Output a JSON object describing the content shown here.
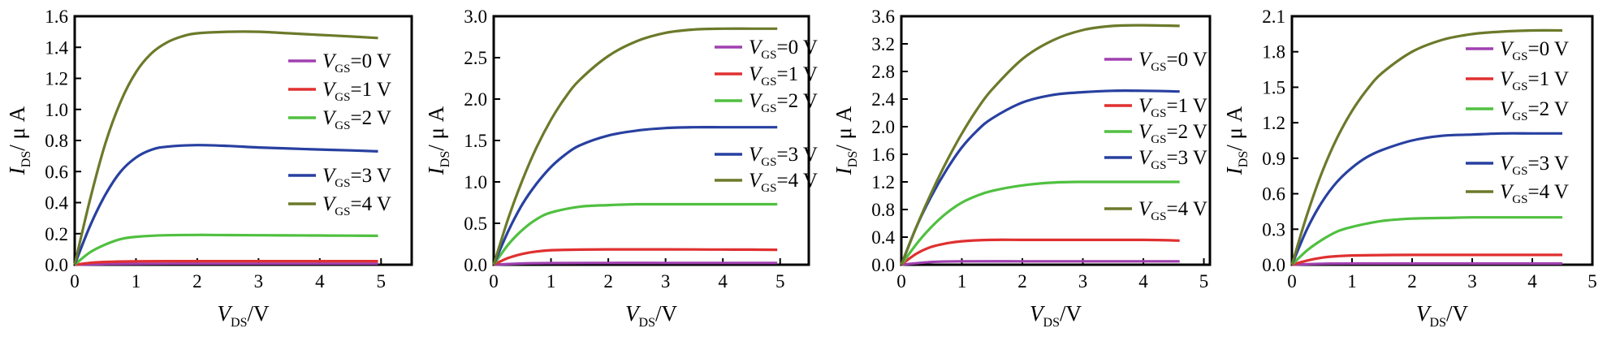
{
  "chart_data": [
    {
      "type": "line",
      "xlabel": {
        "main": "V",
        "sub": "DS",
        "tail": "/V"
      },
      "ylabel": {
        "main": "I",
        "sub": "DS",
        "tail": "/ μ A"
      },
      "xlim": [
        0,
        5.5
      ],
      "ylim": [
        0,
        1.6
      ],
      "x_ticks": [
        "0",
        "1",
        "2",
        "3",
        "4",
        "5"
      ],
      "y_ticks": [
        "0.0",
        "0.2",
        "0.4",
        "0.6",
        "0.8",
        "1.0",
        "1.2",
        "1.4",
        "1.6"
      ],
      "grid": false,
      "legend": "right",
      "series": [
        {
          "name": "VGS=0 V",
          "label": {
            "main": "V",
            "sub": "GS",
            "tail": "=0 V"
          },
          "color": "#a040b0",
          "x": [
            0,
            0.5,
            1,
            1.5,
            2,
            2.5,
            3,
            3.5,
            4,
            4.5,
            4.95
          ],
          "y": [
            0,
            0.004,
            0.006,
            0.007,
            0.007,
            0.007,
            0.007,
            0.007,
            0.007,
            0.007,
            0.007
          ]
        },
        {
          "name": "VGS=1 V",
          "label": {
            "main": "V",
            "sub": "GS",
            "tail": "=1 V"
          },
          "color": "#e03030",
          "x": [
            0,
            0.25,
            0.5,
            1,
            1.5,
            2,
            2.5,
            3,
            3.5,
            4,
            4.5,
            4.95
          ],
          "y": [
            0,
            0.012,
            0.018,
            0.022,
            0.023,
            0.023,
            0.023,
            0.023,
            0.023,
            0.023,
            0.023,
            0.023
          ]
        },
        {
          "name": "VGS=2 V",
          "label": {
            "main": "V",
            "sub": "GS",
            "tail": "=2 V"
          },
          "color": "#50c040",
          "x": [
            0,
            0.25,
            0.5,
            0.75,
            1,
            1.5,
            2,
            2.5,
            3,
            3.5,
            4,
            4.5,
            4.95
          ],
          "y": [
            0,
            0.08,
            0.13,
            0.165,
            0.18,
            0.19,
            0.192,
            0.191,
            0.19,
            0.189,
            0.188,
            0.187,
            0.186
          ]
        },
        {
          "name": "VGS=3 V",
          "label": {
            "main": "V",
            "sub": "GS",
            "tail": "=3 V"
          },
          "color": "#2840a0",
          "x": [
            0,
            0.25,
            0.5,
            0.75,
            1,
            1.25,
            1.5,
            2,
            2.5,
            3,
            3.5,
            4,
            4.5,
            4.95
          ],
          "y": [
            0,
            0.25,
            0.45,
            0.6,
            0.69,
            0.74,
            0.76,
            0.77,
            0.765,
            0.755,
            0.748,
            0.742,
            0.736,
            0.73
          ]
        },
        {
          "name": "VGS=4 V",
          "label": {
            "main": "V",
            "sub": "GS",
            "tail": "=4 V"
          },
          "color": "#6b7a2a",
          "x": [
            0,
            0.25,
            0.5,
            0.75,
            1,
            1.25,
            1.5,
            1.75,
            2,
            2.5,
            3,
            3.5,
            4,
            4.5,
            4.95
          ],
          "y": [
            0,
            0.42,
            0.78,
            1.05,
            1.24,
            1.36,
            1.43,
            1.47,
            1.49,
            1.5,
            1.5,
            1.49,
            1.48,
            1.47,
            1.46
          ]
        }
      ]
    },
    {
      "type": "line",
      "xlabel": {
        "main": "V",
        "sub": "DS",
        "tail": "/V"
      },
      "ylabel": {
        "main": "I",
        "sub": "DS",
        "tail": "/ μ A"
      },
      "xlim": [
        0,
        5.5
      ],
      "ylim": [
        0,
        3.0
      ],
      "x_ticks": [
        "0",
        "1",
        "2",
        "3",
        "4",
        "5"
      ],
      "y_ticks": [
        "0.0",
        "0.5",
        "1.0",
        "1.5",
        "2.0",
        "2.5",
        "3.0"
      ],
      "grid": false,
      "legend": "right",
      "series": [
        {
          "name": "VGS=0 V",
          "label": {
            "main": "V",
            "sub": "GS",
            "tail": "=0 V"
          },
          "color": "#a040b0",
          "x": [
            0,
            0.5,
            1,
            2,
            3,
            4,
            4.95
          ],
          "y": [
            0,
            0.015,
            0.02,
            0.022,
            0.022,
            0.022,
            0.022
          ]
        },
        {
          "name": "VGS=1 V",
          "label": {
            "main": "V",
            "sub": "GS",
            "tail": "=1 V"
          },
          "color": "#e03030",
          "x": [
            0,
            0.25,
            0.5,
            0.75,
            1,
            1.5,
            2,
            2.5,
            3,
            3.5,
            4,
            4.5,
            4.95
          ],
          "y": [
            0,
            0.08,
            0.13,
            0.16,
            0.175,
            0.182,
            0.185,
            0.185,
            0.185,
            0.184,
            0.183,
            0.182,
            0.18
          ]
        },
        {
          "name": "VGS=2 V",
          "label": {
            "main": "V",
            "sub": "GS",
            "tail": "=2 V"
          },
          "color": "#50c040",
          "x": [
            0,
            0.25,
            0.5,
            0.75,
            1,
            1.5,
            2,
            2.5,
            3,
            3.5,
            4,
            4.5,
            4.95
          ],
          "y": [
            0,
            0.24,
            0.42,
            0.55,
            0.63,
            0.7,
            0.72,
            0.73,
            0.73,
            0.73,
            0.73,
            0.73,
            0.73
          ]
        },
        {
          "name": "VGS=3 V",
          "label": {
            "main": "V",
            "sub": "GS",
            "tail": "=3 V"
          },
          "color": "#2840a0",
          "x": [
            0,
            0.25,
            0.5,
            0.75,
            1,
            1.25,
            1.5,
            2,
            2.5,
            3,
            3.5,
            4,
            4.5,
            4.95
          ],
          "y": [
            0,
            0.4,
            0.73,
            0.98,
            1.18,
            1.33,
            1.44,
            1.56,
            1.62,
            1.65,
            1.66,
            1.66,
            1.66,
            1.66
          ]
        },
        {
          "name": "VGS=4 V",
          "label": {
            "main": "V",
            "sub": "GS",
            "tail": "=4 V"
          },
          "color": "#6b7a2a",
          "x": [
            0,
            0.25,
            0.5,
            0.75,
            1,
            1.25,
            1.5,
            2,
            2.5,
            3,
            3.5,
            4,
            4.5,
            4.95
          ],
          "y": [
            0,
            0.55,
            1.02,
            1.42,
            1.75,
            2.02,
            2.23,
            2.52,
            2.7,
            2.8,
            2.84,
            2.85,
            2.85,
            2.85
          ]
        }
      ]
    },
    {
      "type": "line",
      "xlabel": {
        "main": "V",
        "sub": "DS",
        "tail": "/V"
      },
      "ylabel": {
        "main": "I",
        "sub": "DS",
        "tail": "/ μ A"
      },
      "xlim": [
        0,
        5.1
      ],
      "ylim": [
        0,
        3.6
      ],
      "x_ticks": [
        "0",
        "1",
        "2",
        "3",
        "4",
        "5"
      ],
      "y_ticks": [
        "0.0",
        "0.4",
        "0.8",
        "1.2",
        "1.6",
        "2.0",
        "2.4",
        "2.8",
        "3.2",
        "3.6"
      ],
      "grid": false,
      "legend": "right",
      "series": [
        {
          "name": "VGS=0 V",
          "label": {
            "main": "V",
            "sub": "GS",
            "tail": "=0 V"
          },
          "color": "#a040b0",
          "x": [
            0,
            0.5,
            1,
            2,
            3,
            4,
            4.6
          ],
          "y": [
            0,
            0.04,
            0.05,
            0.05,
            0.05,
            0.05,
            0.05
          ]
        },
        {
          "name": "VGS=1 V",
          "label": {
            "main": "V",
            "sub": "GS",
            "tail": "=1 V"
          },
          "color": "#e03030",
          "x": [
            0,
            0.25,
            0.5,
            0.75,
            1,
            1.5,
            2,
            2.5,
            3,
            3.5,
            4,
            4.6
          ],
          "y": [
            0,
            0.16,
            0.26,
            0.31,
            0.34,
            0.36,
            0.36,
            0.36,
            0.36,
            0.36,
            0.36,
            0.35
          ]
        },
        {
          "name": "VGS=2 V",
          "label": {
            "main": "V",
            "sub": "GS",
            "tail": "=2 V"
          },
          "color": "#50c040",
          "x": [
            0,
            0.25,
            0.5,
            0.75,
            1,
            1.25,
            1.5,
            2,
            2.5,
            3,
            3.5,
            4,
            4.6
          ],
          "y": [
            0,
            0.3,
            0.55,
            0.75,
            0.9,
            1.0,
            1.07,
            1.15,
            1.19,
            1.2,
            1.2,
            1.2,
            1.2
          ]
        },
        {
          "name": "VGS=3 V",
          "label": {
            "main": "V",
            "sub": "GS",
            "tail": "=3 V"
          },
          "color": "#2840a0",
          "x": [
            0,
            0.25,
            0.5,
            0.75,
            1,
            1.25,
            1.5,
            2,
            2.5,
            3,
            3.5,
            4,
            4.6
          ],
          "y": [
            0,
            0.55,
            1.0,
            1.38,
            1.7,
            1.94,
            2.12,
            2.35,
            2.46,
            2.5,
            2.52,
            2.52,
            2.51
          ]
        },
        {
          "name": "VGS=4 V",
          "label": {
            "main": "V",
            "sub": "GS",
            "tail": "=4 V"
          },
          "color": "#6b7a2a",
          "x": [
            0,
            0.25,
            0.5,
            0.75,
            1,
            1.25,
            1.5,
            2,
            2.5,
            3,
            3.5,
            4,
            4.6
          ],
          "y": [
            0,
            0.55,
            1.05,
            1.5,
            1.9,
            2.25,
            2.54,
            2.98,
            3.25,
            3.4,
            3.46,
            3.47,
            3.46
          ]
        }
      ]
    },
    {
      "type": "line",
      "xlabel": {
        "main": "V",
        "sub": "DS",
        "tail": "/V"
      },
      "ylabel": {
        "main": "I",
        "sub": "DS",
        "tail": "/ μ A"
      },
      "xlim": [
        0,
        5.0
      ],
      "ylim": [
        0,
        2.1
      ],
      "x_ticks": [
        "0",
        "1",
        "2",
        "3",
        "4",
        "5"
      ],
      "y_ticks": [
        "0.0",
        "0.3",
        "0.6",
        "0.9",
        "1.2",
        "1.5",
        "1.8",
        "2.1"
      ],
      "grid": false,
      "legend": "right",
      "series": [
        {
          "name": "VGS=0 V",
          "label": {
            "main": "V",
            "sub": "GS",
            "tail": "=0 V"
          },
          "color": "#a040b0",
          "x": [
            0,
            0.5,
            1,
            2,
            3,
            4,
            4.5
          ],
          "y": [
            0,
            0.008,
            0.01,
            0.01,
            0.01,
            0.01,
            0.01
          ]
        },
        {
          "name": "VGS=1 V",
          "label": {
            "main": "V",
            "sub": "GS",
            "tail": "=1 V"
          },
          "color": "#e03030",
          "x": [
            0,
            0.25,
            0.5,
            0.75,
            1,
            1.5,
            2,
            2.5,
            3,
            3.5,
            4,
            4.5
          ],
          "y": [
            0,
            0.035,
            0.06,
            0.072,
            0.078,
            0.082,
            0.083,
            0.083,
            0.083,
            0.083,
            0.083,
            0.083
          ]
        },
        {
          "name": "VGS=2 V",
          "label": {
            "main": "V",
            "sub": "GS",
            "tail": "=2 V"
          },
          "color": "#50c040",
          "x": [
            0,
            0.25,
            0.5,
            0.75,
            1,
            1.5,
            2,
            2.5,
            3,
            3.5,
            4,
            4.5
          ],
          "y": [
            0,
            0.12,
            0.21,
            0.28,
            0.32,
            0.37,
            0.39,
            0.395,
            0.4,
            0.4,
            0.4,
            0.4
          ]
        },
        {
          "name": "VGS=3 V",
          "label": {
            "main": "V",
            "sub": "GS",
            "tail": "=3 V"
          },
          "color": "#2840a0",
          "x": [
            0,
            0.25,
            0.5,
            0.75,
            1,
            1.25,
            1.5,
            2,
            2.5,
            3,
            3.5,
            4,
            4.5
          ],
          "y": [
            0,
            0.3,
            0.53,
            0.7,
            0.82,
            0.91,
            0.97,
            1.05,
            1.09,
            1.1,
            1.11,
            1.11,
            1.11
          ]
        },
        {
          "name": "VGS=4 V",
          "label": {
            "main": "V",
            "sub": "GS",
            "tail": "=4 V"
          },
          "color": "#6b7a2a",
          "x": [
            0,
            0.25,
            0.5,
            0.75,
            1,
            1.25,
            1.5,
            2,
            2.5,
            3,
            3.5,
            4,
            4.5
          ],
          "y": [
            0,
            0.42,
            0.78,
            1.07,
            1.3,
            1.48,
            1.62,
            1.8,
            1.9,
            1.95,
            1.97,
            1.98,
            1.98
          ]
        }
      ]
    }
  ]
}
